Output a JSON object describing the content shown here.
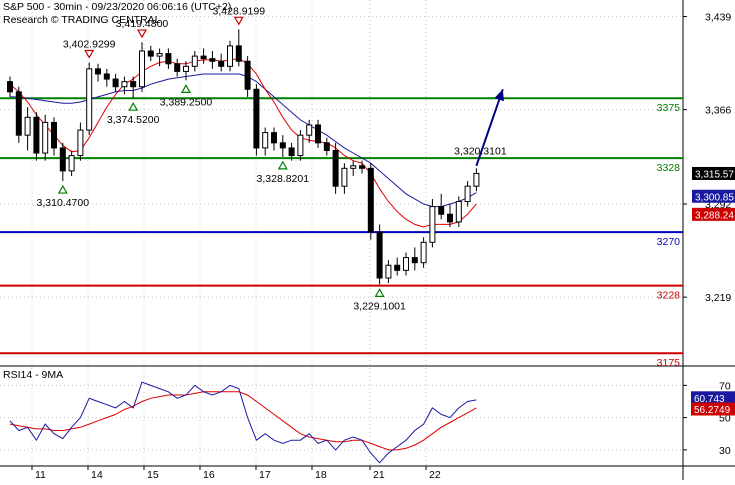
{
  "header": {
    "line1": "S&P 500 - 30min - 09/23/2020 06:06:16 (UTC+2)",
    "line2": "Research © TRADING CENTRAL"
  },
  "colors": {
    "up_candle": "#ffffff",
    "down_candle": "#000000",
    "level_green": "#008000",
    "level_blue": "#0000c0",
    "level_red": "#cc0000",
    "ma_fast": "#dd0000",
    "ma_slow": "#1a1aa0",
    "arrow": "#000080",
    "grid": "#c8c8c8"
  },
  "chart_data": [
    {
      "type": "candlestick",
      "title": "S&P 500 - 30min",
      "ylim": [
        3165,
        3452
      ],
      "y_ticks": [
        "3,439",
        "3,366",
        "3,292",
        "3,219"
      ],
      "x_ticks": [
        "11",
        "14",
        "15",
        "16",
        "17",
        "18",
        "21",
        "22"
      ],
      "levels": [
        {
          "label": "3375",
          "value": 3375,
          "color": "green"
        },
        {
          "label": "3328",
          "value": 3328,
          "color": "green"
        },
        {
          "label": "3270",
          "value": 3270,
          "color": "blue"
        },
        {
          "label": "3228",
          "value": 3228,
          "color": "red"
        },
        {
          "label": "3175",
          "value": 3175,
          "color": "red"
        }
      ],
      "right_badges": [
        {
          "label": "3,315.57",
          "value": 3315.57,
          "bg": "#000000"
        },
        {
          "label": "3,300.85",
          "value": 3300.85,
          "bg": "#1a1aa0"
        },
        {
          "label": "3,288.24",
          "value": 3288.24,
          "bg": "#cc0000"
        }
      ],
      "annotations": [
        {
          "label": "3,402.9299",
          "index": 9,
          "kind": "high"
        },
        {
          "label": "3,419.4800",
          "index": 15,
          "kind": "high"
        },
        {
          "label": "3,428.9199",
          "index": 26,
          "kind": "high"
        },
        {
          "label": "3,374.5200",
          "index": 14,
          "kind": "low"
        },
        {
          "label": "3,389.2500",
          "index": 20,
          "kind": "low"
        },
        {
          "label": "3,310.4700",
          "index": 6,
          "kind": "low"
        },
        {
          "label": "3,328.8201",
          "index": 31,
          "kind": "low"
        },
        {
          "label": "3,229.1001",
          "index": 42,
          "kind": "low"
        },
        {
          "label": "3,320.3101",
          "index": 53,
          "kind": "text"
        }
      ],
      "ohlc": [
        [
          3388,
          3392,
          3376,
          3380
        ],
        [
          3380,
          3384,
          3340,
          3346
        ],
        [
          3346,
          3368,
          3334,
          3360
        ],
        [
          3360,
          3364,
          3326,
          3332
        ],
        [
          3332,
          3362,
          3326,
          3356
        ],
        [
          3356,
          3360,
          3330,
          3336
        ],
        [
          3336,
          3340,
          3310,
          3318
        ],
        [
          3318,
          3334,
          3314,
          3330
        ],
        [
          3330,
          3356,
          3326,
          3350
        ],
        [
          3350,
          3403,
          3346,
          3398
        ],
        [
          3398,
          3402,
          3388,
          3394
        ],
        [
          3394,
          3398,
          3384,
          3390
        ],
        [
          3390,
          3394,
          3380,
          3384
        ],
        [
          3384,
          3392,
          3378,
          3388
        ],
        [
          3388,
          3392,
          3375,
          3384
        ],
        [
          3384,
          3419,
          3380,
          3412
        ],
        [
          3412,
          3416,
          3404,
          3408
        ],
        [
          3408,
          3414,
          3400,
          3410
        ],
        [
          3410,
          3414,
          3398,
          3402
        ],
        [
          3402,
          3406,
          3392,
          3396
        ],
        [
          3396,
          3404,
          3389,
          3400
        ],
        [
          3400,
          3412,
          3396,
          3408
        ],
        [
          3408,
          3414,
          3402,
          3406
        ],
        [
          3406,
          3412,
          3398,
          3404
        ],
        [
          3404,
          3410,
          3396,
          3400
        ],
        [
          3400,
          3420,
          3396,
          3416
        ],
        [
          3416,
          3429,
          3400,
          3404
        ],
        [
          3404,
          3408,
          3376,
          3382
        ],
        [
          3382,
          3386,
          3330,
          3336
        ],
        [
          3336,
          3352,
          3330,
          3348
        ],
        [
          3348,
          3352,
          3334,
          3340
        ],
        [
          3340,
          3346,
          3329,
          3336
        ],
        [
          3336,
          3340,
          3326,
          3330
        ],
        [
          3330,
          3350,
          3326,
          3346
        ],
        [
          3346,
          3358,
          3340,
          3354
        ],
        [
          3354,
          3358,
          3336,
          3340
        ],
        [
          3340,
          3344,
          3330,
          3334
        ],
        [
          3334,
          3340,
          3300,
          3306
        ],
        [
          3306,
          3324,
          3300,
          3320
        ],
        [
          3320,
          3326,
          3314,
          3322
        ],
        [
          3322,
          3326,
          3316,
          3320
        ],
        [
          3320,
          3324,
          3264,
          3270
        ],
        [
          3270,
          3276,
          3229,
          3234
        ],
        [
          3234,
          3248,
          3230,
          3244
        ],
        [
          3244,
          3250,
          3236,
          3240
        ],
        [
          3240,
          3254,
          3236,
          3250
        ],
        [
          3250,
          3258,
          3240,
          3246
        ],
        [
          3246,
          3266,
          3242,
          3262
        ],
        [
          3262,
          3296,
          3258,
          3290
        ],
        [
          3290,
          3300,
          3280,
          3284
        ],
        [
          3284,
          3292,
          3274,
          3278
        ],
        [
          3278,
          3298,
          3274,
          3294
        ],
        [
          3294,
          3310,
          3290,
          3306
        ],
        [
          3306,
          3320,
          3302,
          3316
        ]
      ],
      "ma_fast_values": [
        3386,
        3380,
        3372,
        3362,
        3354,
        3346,
        3338,
        3333,
        3334,
        3344,
        3356,
        3368,
        3378,
        3386,
        3390,
        3396,
        3400,
        3403,
        3404,
        3402,
        3402,
        3404,
        3405,
        3405,
        3404,
        3405,
        3406,
        3402,
        3394,
        3382,
        3372,
        3360,
        3350,
        3344,
        3342,
        3341,
        3340,
        3336,
        3330,
        3326,
        3324,
        3316,
        3304,
        3294,
        3286,
        3280,
        3276,
        3274,
        3276,
        3276,
        3276,
        3278,
        3284,
        3292
      ],
      "ma_slow_values": [
        3376,
        3376,
        3375,
        3374,
        3373,
        3372,
        3371,
        3371,
        3372,
        3374,
        3376,
        3378,
        3380,
        3381,
        3381,
        3383,
        3386,
        3388,
        3390,
        3391,
        3392,
        3393,
        3394,
        3394,
        3394,
        3394,
        3394,
        3392,
        3388,
        3382,
        3376,
        3370,
        3364,
        3358,
        3354,
        3350,
        3346,
        3341,
        3336,
        3332,
        3328,
        3324,
        3318,
        3312,
        3306,
        3300,
        3296,
        3292,
        3290,
        3290,
        3292,
        3294,
        3297,
        3301
      ],
      "arrow": {
        "from": [
          53,
          3322
        ],
        "to": [
          56,
          3382
        ]
      }
    },
    {
      "type": "line",
      "title": "RSI14 - 9MA",
      "ylim": [
        20,
        82
      ],
      "y_ticks": [
        "70",
        "50",
        "30"
      ],
      "badges": [
        {
          "label": "60.743",
          "value": 60.743,
          "bg": "#1a1aa0"
        },
        {
          "label": "56.2749",
          "value": 56.2749,
          "bg": "#cc0000"
        }
      ],
      "series": [
        {
          "name": "RSI14",
          "color": "#1a1aa0",
          "values": [
            48,
            42,
            44,
            36,
            46,
            40,
            37,
            44,
            50,
            62,
            60,
            58,
            56,
            60,
            56,
            72,
            70,
            68,
            66,
            62,
            64,
            70,
            66,
            64,
            66,
            70,
            68,
            50,
            36,
            40,
            36,
            34,
            36,
            36,
            40,
            34,
            36,
            30,
            36,
            38,
            36,
            28,
            22,
            28,
            32,
            36,
            42,
            46,
            56,
            52,
            50,
            56,
            60,
            61
          ]
        },
        {
          "name": "9MA",
          "color": "#dd0000",
          "values": [
            46,
            45,
            44,
            43,
            43,
            42,
            42,
            43,
            44,
            46,
            48,
            50,
            52,
            55,
            57,
            60,
            62,
            63,
            64,
            64,
            64,
            65,
            66,
            66,
            66,
            66,
            66,
            64,
            60,
            56,
            52,
            48,
            44,
            40,
            38,
            37,
            36,
            35,
            35,
            36,
            36,
            34,
            32,
            30,
            30,
            31,
            33,
            36,
            40,
            44,
            47,
            50,
            53,
            56
          ]
        }
      ]
    }
  ]
}
